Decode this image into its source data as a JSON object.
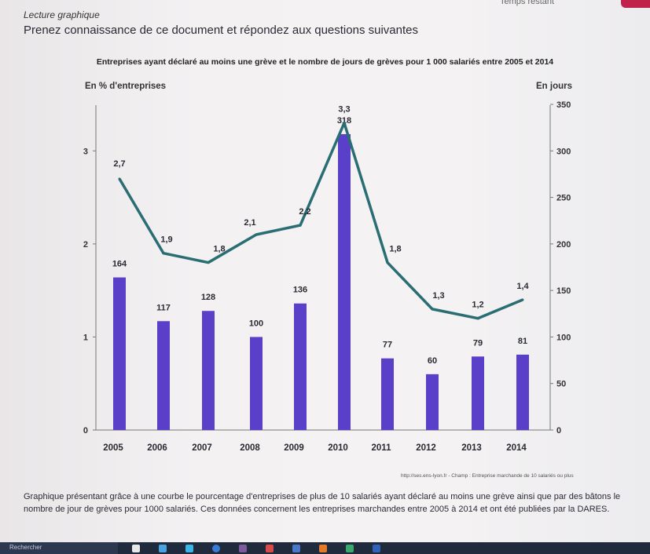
{
  "header": {
    "timer_text": "Temps restant",
    "kicker": "Lecture graphique",
    "instruction": "Prenez connaissance de ce document et répondez aux questions suivantes"
  },
  "chart_data": {
    "type": "bar+line",
    "title": "Entreprises ayant déclaré au moins une grève et le nombre de jours de grèves pour 1 000 salariés entre 2005 et 2014",
    "left_axis_label": "En % d'entreprises",
    "right_axis_label": "En jours",
    "categories": [
      "2005",
      "2006",
      "2007",
      "2008",
      "2009",
      "2010",
      "2011",
      "2012",
      "2013",
      "2014"
    ],
    "left_axis": {
      "min": 0,
      "max": 3.5,
      "ticks": [
        "0",
        "1",
        "2",
        "3"
      ]
    },
    "right_axis": {
      "min": 0,
      "max": 350,
      "ticks": [
        "0",
        "50",
        "100",
        "150",
        "200",
        "250",
        "300",
        "350"
      ]
    },
    "series": [
      {
        "kind": "line",
        "axis": "left",
        "color": "#2a6e74",
        "values": [
          2.7,
          1.9,
          1.8,
          2.1,
          2.2,
          3.3,
          1.8,
          1.3,
          1.2,
          1.4
        ],
        "labels": [
          "2,7",
          "1,9",
          "1,8",
          "2,1",
          "2,2",
          "3,3",
          "1,8",
          "1,3",
          "1,2",
          "1,4"
        ]
      },
      {
        "kind": "bar",
        "axis": "right",
        "color": "#5a3fc9",
        "values": [
          164,
          117,
          128,
          100,
          136,
          318,
          77,
          60,
          79,
          81
        ],
        "labels": [
          "164",
          "117",
          "128",
          "100",
          "136",
          "318",
          "77",
          "60",
          "79",
          "81"
        ]
      }
    ]
  },
  "source": "http://ses.ens-lyon.fr - Champ : Entreprise marchande de 10 salariés ou plus",
  "caption": "Graphique présentant grâce à une courbe le pourcentage d'entreprises de plus de 10 salariés ayant déclaré au moins une grève ainsi que par des bâtons le nombre de jour de grèves pour 1000 salariés. Ces données concernent les entreprises marchandes entre 2005 à 2014 et ont été publiées par la DARES.",
  "taskbar": {
    "search_label": "Rechercher"
  }
}
